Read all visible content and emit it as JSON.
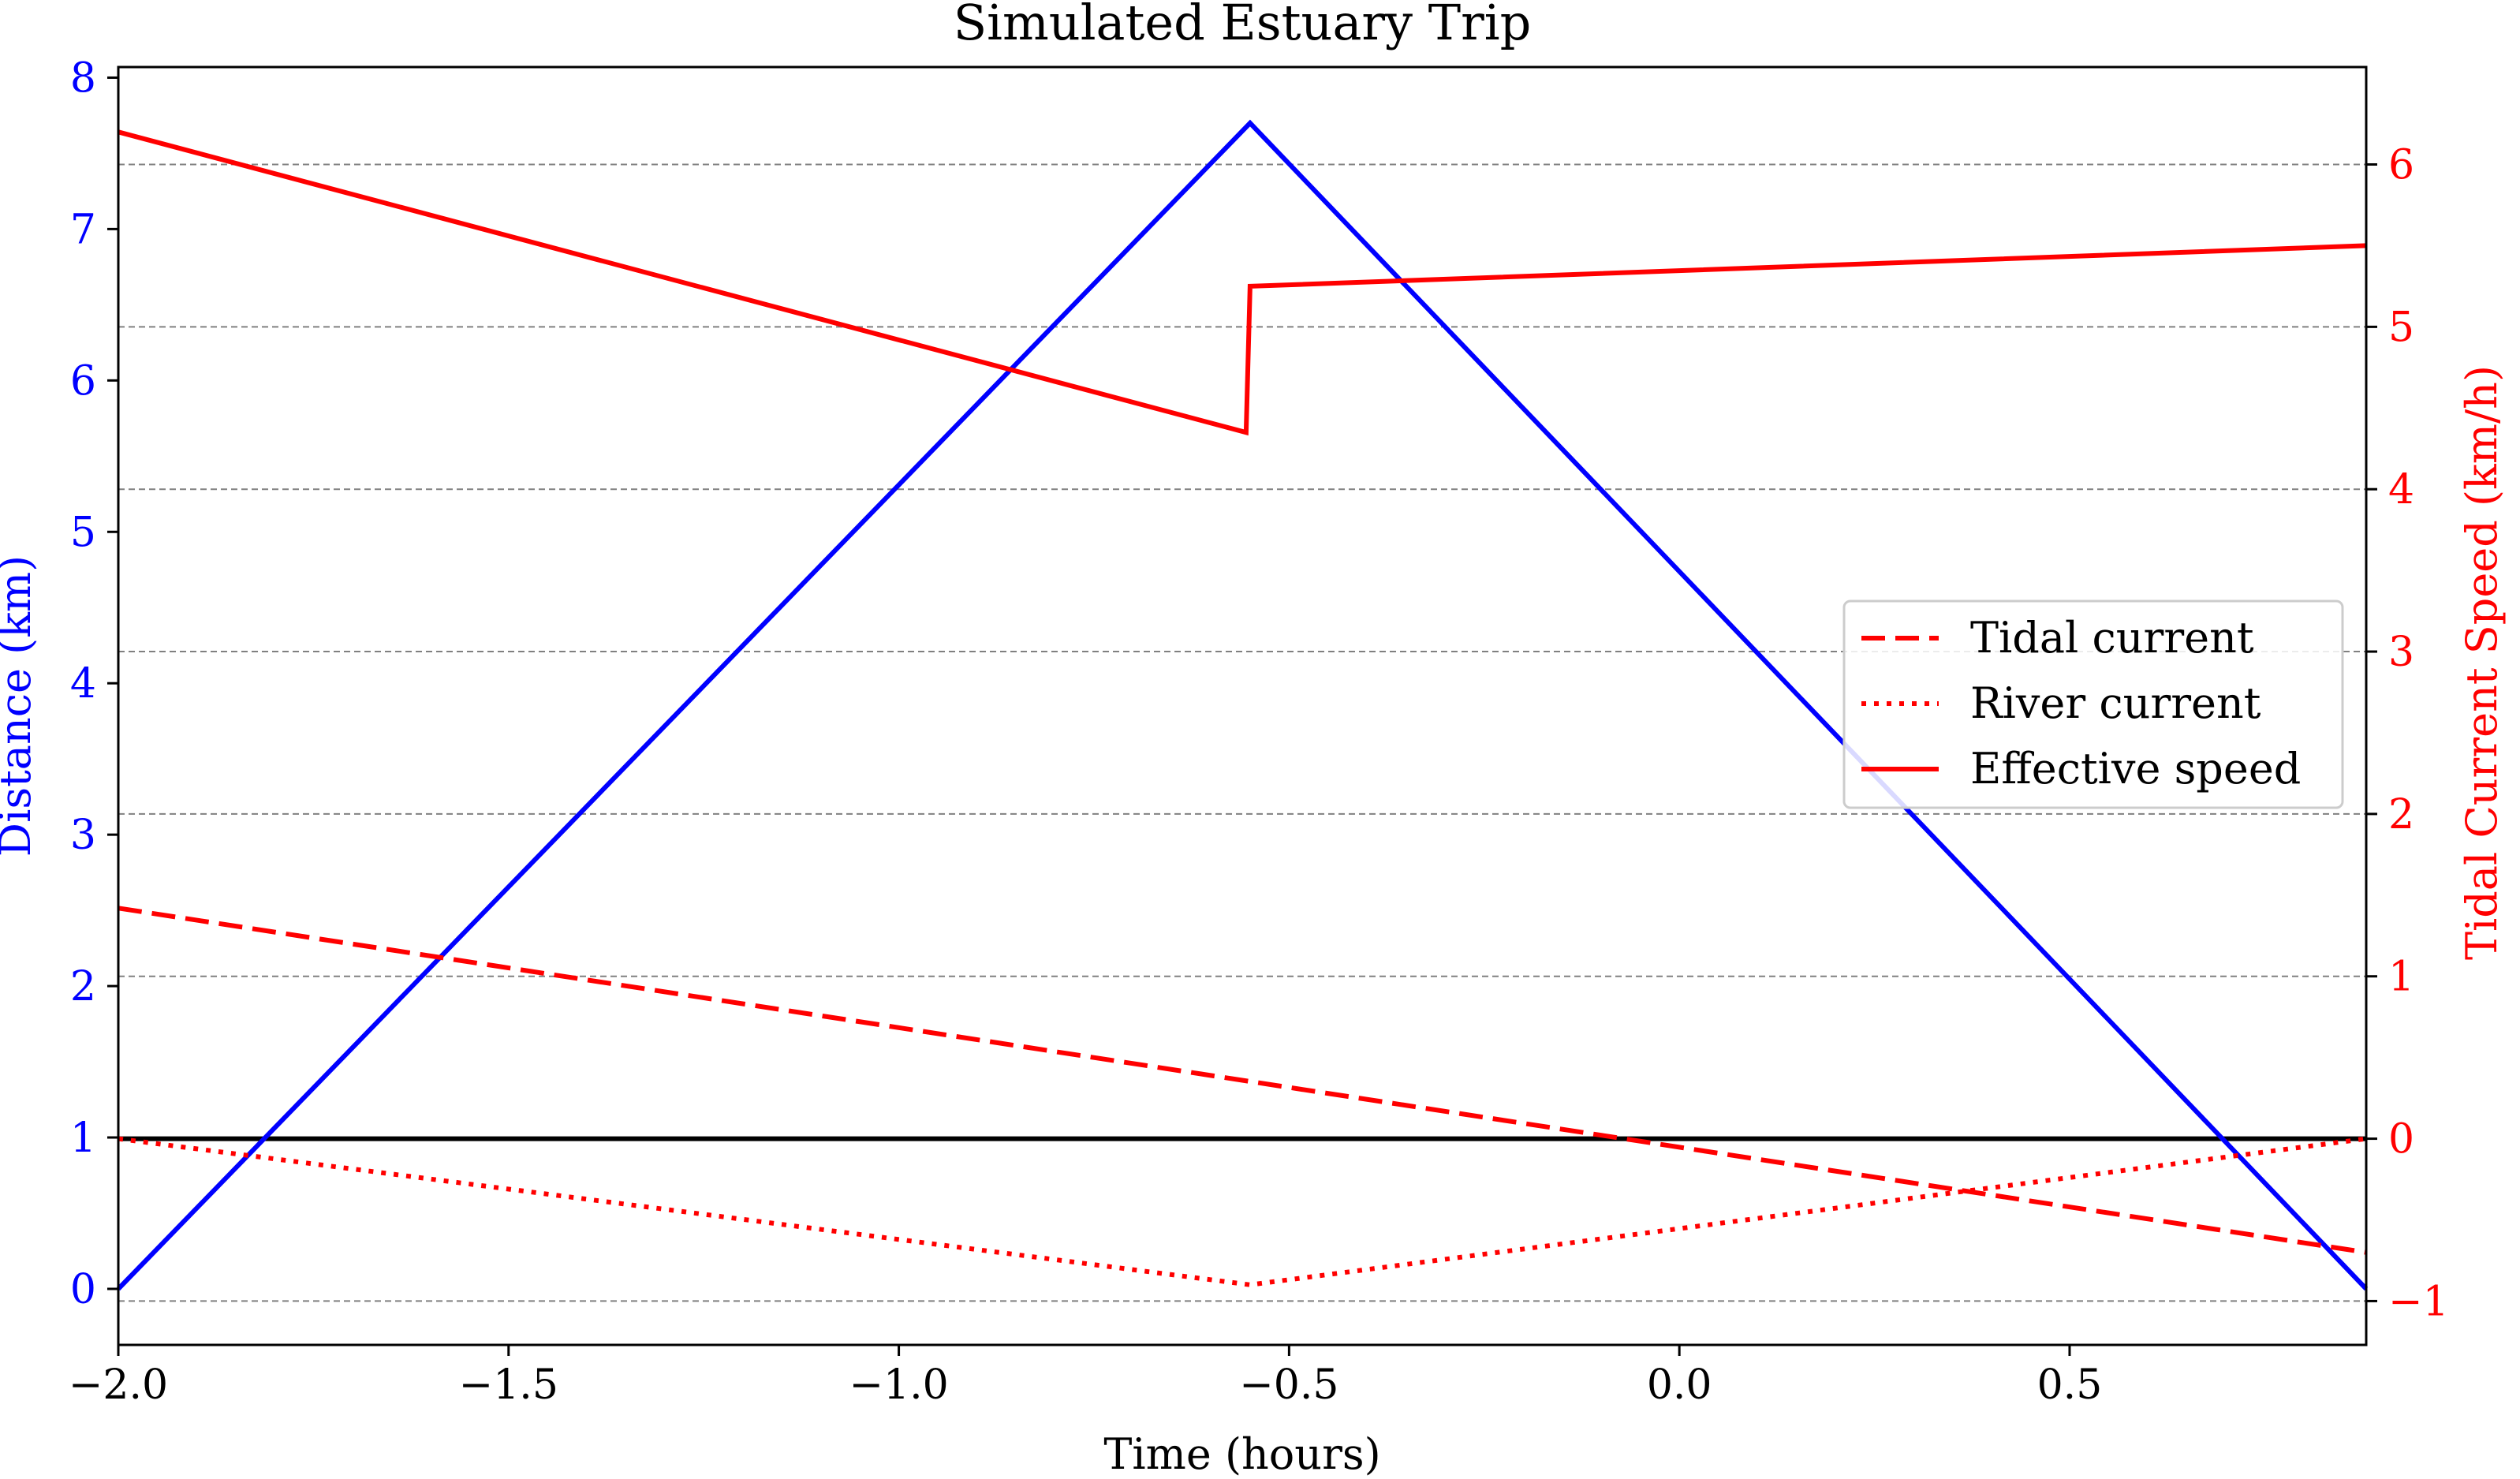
{
  "chart_data": {
    "type": "line",
    "title": "Simulated Estuary Trip",
    "xlabel": "Time (hours)",
    "ylabel_left": "Distance (km)",
    "ylabel_right": "Tidal Current Speed (km/h)",
    "xlim": [
      -2.0,
      0.88
    ],
    "ylim_left": [
      -0.37,
      8.07
    ],
    "ylim_right": [
      -1.27,
      6.6
    ],
    "x_ticks": [
      -2.0,
      -1.5,
      -1.0,
      -0.5,
      0.0,
      0.5
    ],
    "x_tick_labels": [
      "−2.0",
      "−1.5",
      "−1.0",
      "−0.5",
      "0.0",
      "0.5"
    ],
    "left_ticks": [
      0,
      1,
      2,
      3,
      4,
      5,
      6,
      7,
      8
    ],
    "left_tick_labels": [
      "0",
      "1",
      "2",
      "3",
      "4",
      "5",
      "6",
      "7",
      "8"
    ],
    "right_ticks": [
      -1,
      0,
      1,
      2,
      3,
      4,
      5,
      6
    ],
    "right_tick_labels": [
      "−1",
      "0",
      "1",
      "2",
      "3",
      "4",
      "5",
      "6"
    ],
    "grid": "horizontal dashed at right-axis ticks",
    "legend_position": "center-right",
    "zero_line": {
      "axis": "right",
      "y": 0,
      "color": "#000000"
    },
    "series": [
      {
        "name": "",
        "axis": "left",
        "color": "#0000ff",
        "style": "solid",
        "x": [
          -2.0,
          -0.55,
          0.88
        ],
        "y": [
          0.0,
          7.7,
          0.0
        ]
      },
      {
        "name": "Tidal current",
        "axis": "right",
        "color": "#ff0000",
        "style": "dashed",
        "x": [
          -2.0,
          0.88
        ],
        "y": [
          1.42,
          -0.7
        ]
      },
      {
        "name": "River current",
        "axis": "right",
        "color": "#ff0000",
        "style": "dotted",
        "x": [
          -2.0,
          -0.55,
          0.88
        ],
        "y": [
          0.0,
          -0.9,
          0.0
        ]
      },
      {
        "name": "Effective speed",
        "axis": "right",
        "color": "#ff0000",
        "style": "solid",
        "x": [
          -2.0,
          -0.555,
          -0.55,
          0.88
        ],
        "y": [
          6.2,
          4.35,
          5.25,
          5.5
        ]
      }
    ],
    "colors": {
      "left_axis": "#0000ff",
      "right_axis": "#ff0000",
      "grid": "#808080"
    }
  }
}
